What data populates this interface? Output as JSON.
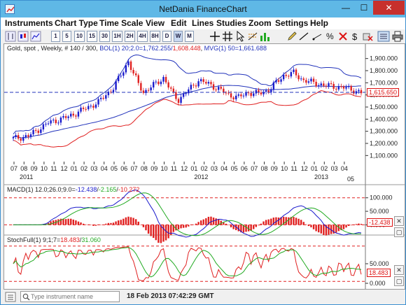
{
  "window": {
    "title": "NetDania FinanceChart",
    "minimize": "—",
    "maximize": "☐",
    "close": "✕"
  },
  "menu": [
    "Instruments",
    "Chart Type",
    "Time Scale",
    "View",
    "Edit",
    "Lines",
    "Studies",
    "Zoom",
    "Settings",
    "Help"
  ],
  "toolbar": {
    "scales": [
      "1",
      "5",
      "10",
      "15",
      "30",
      "1H",
      "2H",
      "4H",
      "8H",
      "D",
      "W",
      "M"
    ],
    "icons": [
      "bar-chart-icon",
      "candlestick-icon",
      "line-chart-icon",
      "crosshair-icon",
      "grid-icon",
      "cursor-icon",
      "eraser-icon",
      "percent-icon",
      "delete-icon",
      "dollar-icon",
      "print-icon",
      "fit-icon"
    ]
  },
  "main_pane": {
    "legend_instrument": "Gold, spot , Weekly, # 140 / 300, ",
    "legend_bol": "BOL(1) 20;2.0=1,762.255/",
    "legend_bol_low": "1,608.448",
    "legend_mvg": "MVG(1) 50=1,661.688",
    "current_price": "1,615.650",
    "y_ticks": [
      "1,900.000",
      "1,800.000",
      "1,700.000",
      "1,600.000",
      "1,500.000",
      "1,400.000",
      "1,300.000",
      "1,200.000",
      "1,100.000"
    ],
    "x_months": [
      "07",
      "08",
      "09",
      "10",
      "11",
      "12",
      "01",
      "02",
      "03",
      "04",
      "05",
      "06",
      "07",
      "08",
      "09",
      "10",
      "11",
      "12",
      "01",
      "02",
      "03",
      "04",
      "05",
      "06",
      "07",
      "08",
      "09",
      "10",
      "11",
      "12",
      "01",
      "02",
      "03",
      "04",
      "05"
    ],
    "x_years": [
      "2011",
      "2012",
      "2013"
    ]
  },
  "macd_pane": {
    "legend_prefix": "MACD(1) 12.0;26.0;9.0=",
    "legend_v1": "-12.438",
    "legend_v2": "-2.165",
    "legend_v3": "-10.272",
    "y_ticks": [
      "100.000",
      "50.000",
      "0.000"
    ],
    "current": "-12.438"
  },
  "stoch_pane": {
    "legend_prefix": "StochFull(1) 9;1;7=",
    "legend_v1": "18.483",
    "legend_v2": "31.060",
    "y_ticks": [
      "50.000",
      "0.000"
    ],
    "current": "18.483"
  },
  "status": {
    "search_placeholder": "Type instrument name",
    "datetime": "18 Feb 2013 07:42:29 GMT"
  },
  "colors": {
    "up": "#1a1acc",
    "down": "#e02020",
    "bol": "#2233bb",
    "mvg": "#e02020",
    "stoch_fast": "#e02020",
    "stoch_slow": "#22aa22"
  }
}
